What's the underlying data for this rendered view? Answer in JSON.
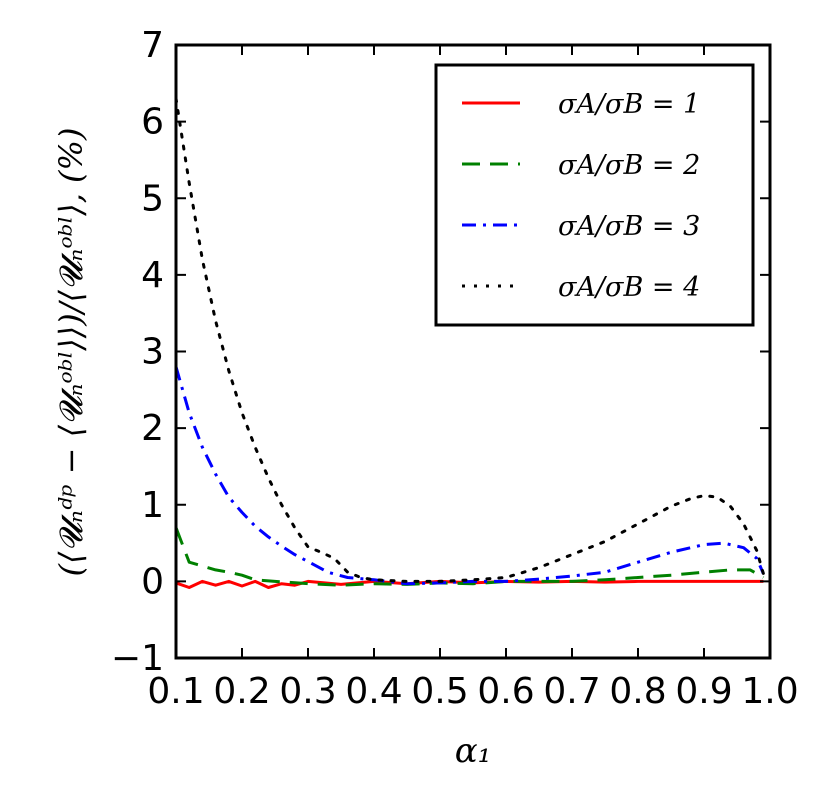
{
  "chart_data": {
    "type": "line",
    "title": "",
    "xlabel": "α₁",
    "ylabel": "(⟨𝓤ₙᵈᵖ − ⟨𝓤ₙᵒᵇˡ⟩⟩)/⟨𝓤ₙᵒᵇˡ⟩, (%)",
    "xlim": [
      0.1,
      1.0
    ],
    "ylim": [
      -1,
      7
    ],
    "x_ticks": [
      "0.1",
      "0.2",
      "0.3",
      "0.4",
      "0.5",
      "0.6",
      "0.7",
      "0.8",
      "0.9",
      "1.0"
    ],
    "y_ticks": [
      "−1",
      "0",
      "1",
      "2",
      "3",
      "4",
      "5",
      "6",
      "7"
    ],
    "legend_position": "top-right",
    "series": [
      {
        "name": "σA/σB = 1",
        "color": "#ff0000",
        "style": "solid",
        "x": [
          0.1,
          0.12,
          0.14,
          0.16,
          0.18,
          0.2,
          0.22,
          0.24,
          0.26,
          0.28,
          0.3,
          0.35,
          0.4,
          0.45,
          0.5,
          0.55,
          0.6,
          0.65,
          0.7,
          0.75,
          0.8,
          0.85,
          0.9,
          0.95,
          0.99
        ],
        "y": [
          -0.02,
          -0.08,
          0.0,
          -0.05,
          0.0,
          -0.06,
          0.0,
          -0.08,
          -0.03,
          -0.05,
          0.0,
          -0.04,
          0.0,
          -0.03,
          0.0,
          -0.02,
          0.0,
          -0.01,
          0.0,
          -0.01,
          0.0,
          0.0,
          0.0,
          0.0,
          0.0
        ]
      },
      {
        "name": "σA/σB = 2",
        "color": "#008000",
        "style": "dashed",
        "x": [
          0.1,
          0.12,
          0.14,
          0.16,
          0.18,
          0.2,
          0.22,
          0.25,
          0.3,
          0.35,
          0.4,
          0.45,
          0.5,
          0.55,
          0.6,
          0.65,
          0.7,
          0.75,
          0.8,
          0.85,
          0.9,
          0.94,
          0.97,
          0.99
        ],
        "y": [
          0.7,
          0.25,
          0.2,
          0.15,
          0.12,
          0.08,
          0.02,
          0.0,
          -0.03,
          -0.05,
          -0.03,
          -0.04,
          -0.02,
          -0.03,
          0.0,
          0.0,
          0.0,
          0.02,
          0.05,
          0.08,
          0.12,
          0.15,
          0.15,
          0.05
        ]
      },
      {
        "name": "σA/σB = 3",
        "color": "#0000ff",
        "style": "dashdot",
        "x": [
          0.1,
          0.12,
          0.14,
          0.16,
          0.18,
          0.2,
          0.22,
          0.24,
          0.26,
          0.28,
          0.3,
          0.33,
          0.36,
          0.4,
          0.45,
          0.5,
          0.55,
          0.6,
          0.65,
          0.7,
          0.75,
          0.8,
          0.85,
          0.9,
          0.93,
          0.96,
          0.98,
          0.99
        ],
        "y": [
          2.8,
          2.2,
          1.75,
          1.4,
          1.1,
          0.9,
          0.72,
          0.58,
          0.46,
          0.35,
          0.26,
          0.12,
          0.05,
          0.02,
          -0.03,
          -0.02,
          0.0,
          0.0,
          0.03,
          0.07,
          0.12,
          0.25,
          0.38,
          0.48,
          0.5,
          0.44,
          0.3,
          0.1
        ]
      },
      {
        "name": "σA/σB = 4",
        "color": "#000000",
        "style": "dotted",
        "x": [
          0.1,
          0.12,
          0.14,
          0.16,
          0.18,
          0.2,
          0.22,
          0.24,
          0.26,
          0.28,
          0.3,
          0.32,
          0.34,
          0.36,
          0.38,
          0.4,
          0.45,
          0.5,
          0.55,
          0.6,
          0.65,
          0.7,
          0.75,
          0.8,
          0.85,
          0.88,
          0.9,
          0.92,
          0.94,
          0.96,
          0.98,
          0.99
        ],
        "y": [
          6.3,
          5.2,
          4.2,
          3.4,
          2.75,
          2.2,
          1.75,
          1.35,
          1.0,
          0.7,
          0.45,
          0.38,
          0.3,
          0.12,
          0.05,
          0.02,
          0.0,
          0.0,
          0.02,
          0.05,
          0.18,
          0.35,
          0.52,
          0.75,
          0.98,
          1.08,
          1.12,
          1.1,
          0.98,
          0.75,
          0.4,
          0.1
        ]
      }
    ]
  }
}
